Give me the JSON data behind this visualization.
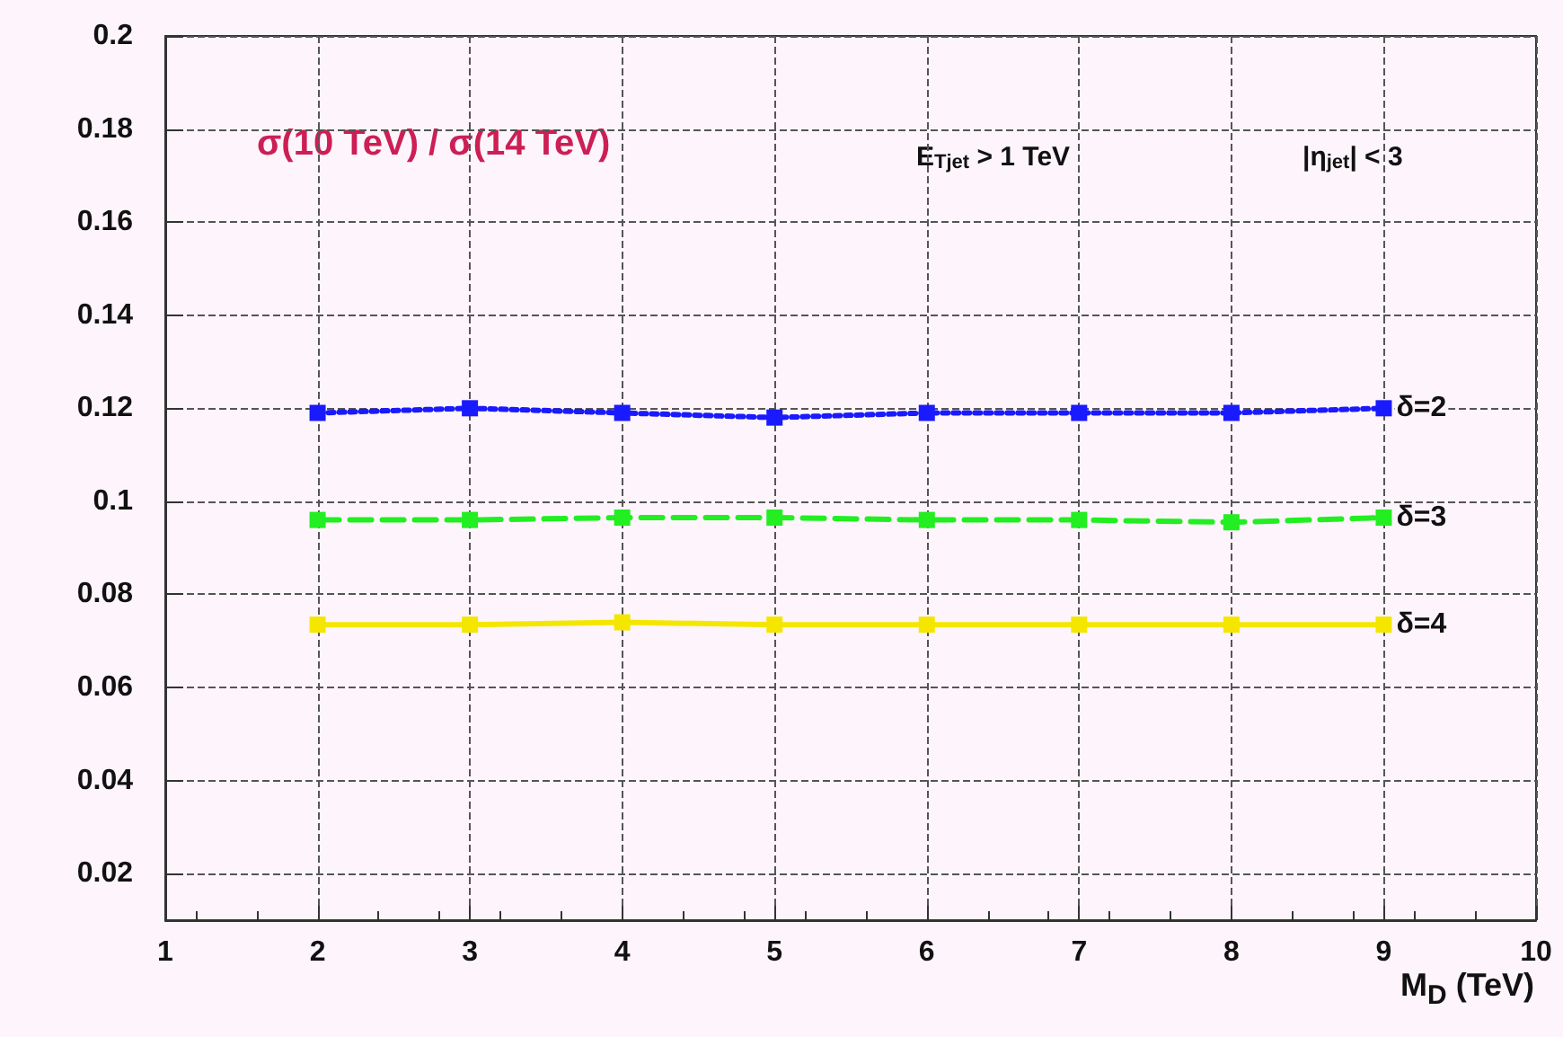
{
  "chart_data": {
    "type": "line",
    "xlabel": "M$_{D}$ (TeV)",
    "x": [
      2,
      3,
      4,
      5,
      6,
      7,
      8,
      9
    ],
    "xlim": [
      1,
      10
    ],
    "xticks": [
      1,
      2,
      3,
      4,
      5,
      6,
      7,
      8,
      9,
      10
    ],
    "ylim": [
      0.01,
      0.2
    ],
    "yticks": [
      0.02,
      0.04,
      0.06,
      0.08,
      0.1,
      0.12,
      0.14,
      0.16,
      0.18,
      0.2
    ],
    "grid": true,
    "marker": "square",
    "legend": false,
    "annotations": [
      "σ(10 TeV) / σ(14 TeV)",
      "E$_{Tjet}$ > 1 TeV",
      "|η$_{jet}$| < 3"
    ],
    "series": [
      {
        "name": "δ=2",
        "color": "#1a1aff",
        "line_style": "dotted",
        "values": [
          0.119,
          0.12,
          0.119,
          0.118,
          0.119,
          0.119,
          0.119,
          0.12
        ]
      },
      {
        "name": "δ=3",
        "color": "#22ee22",
        "line_style": "dashed",
        "values": [
          0.096,
          0.096,
          0.0965,
          0.0965,
          0.096,
          0.096,
          0.0955,
          0.0965
        ]
      },
      {
        "name": "δ=4",
        "color": "#f5e600",
        "line_style": "solid",
        "values": [
          0.0735,
          0.0735,
          0.074,
          0.0735,
          0.0735,
          0.0735,
          0.0735,
          0.0735
        ]
      }
    ]
  }
}
